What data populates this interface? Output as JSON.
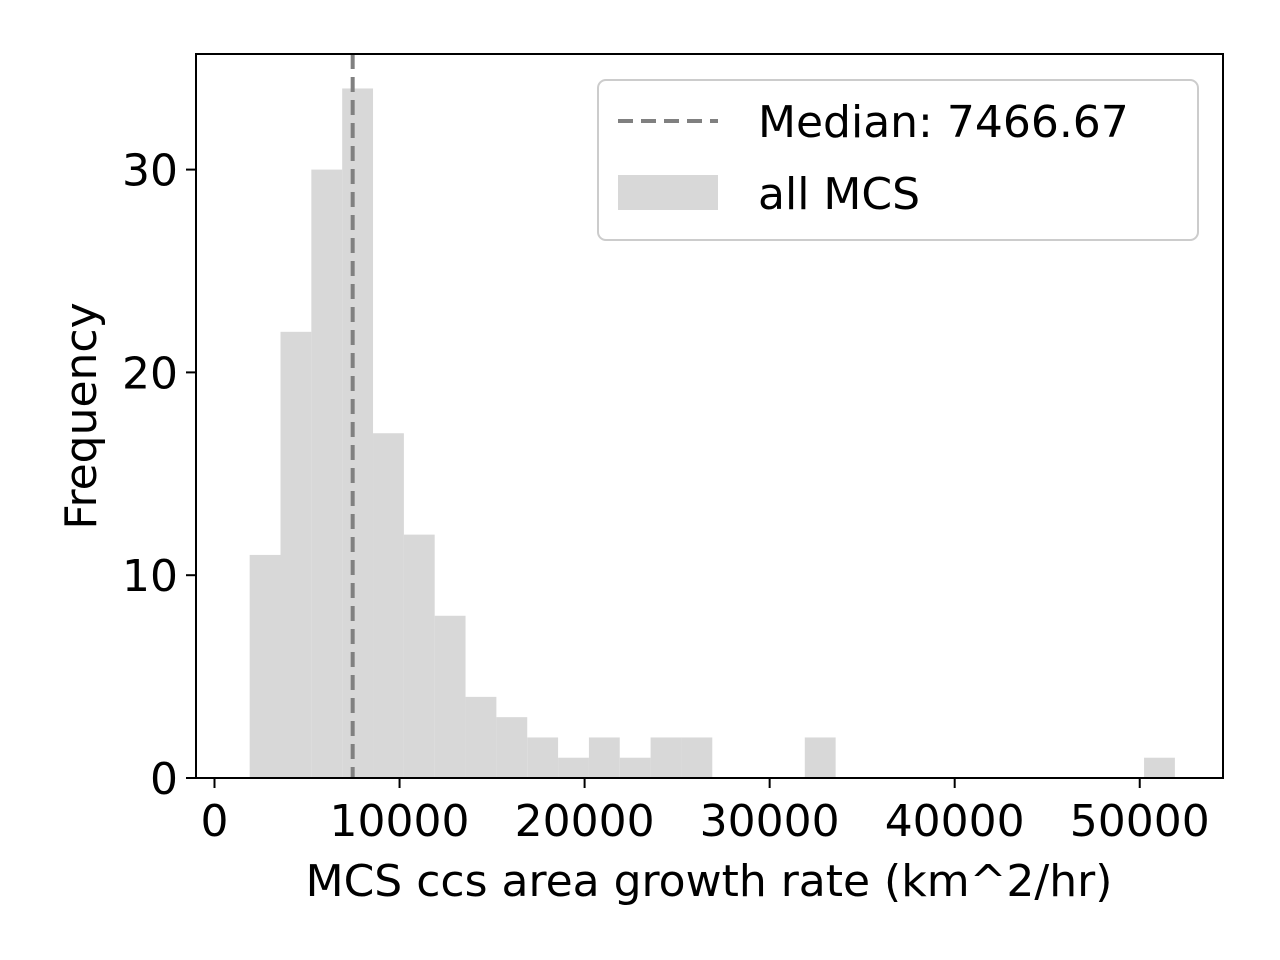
{
  "chart_data": {
    "type": "histogram",
    "xlabel": "MCS ccs area growth rate (km^2/hr)",
    "ylabel": "Frequency",
    "xlim": [
      -1000,
      54500
    ],
    "ylim": [
      0,
      35.7
    ],
    "xticks": [
      0,
      10000,
      20000,
      30000,
      40000,
      50000
    ],
    "xtick_labels": [
      "0",
      "10000",
      "20000",
      "30000",
      "40000",
      "50000"
    ],
    "yticks": [
      0,
      10,
      20,
      30
    ],
    "ytick_labels": [
      "0",
      "10",
      "20",
      "30"
    ],
    "grid": false,
    "legend_position": "top-right",
    "series": [
      {
        "name": "all MCS",
        "color": "#d8d8d8",
        "bin_width": 1666.7,
        "bins_start": [
          1900,
          3567,
          5233,
          6900,
          8567,
          10233,
          11900,
          13567,
          15233,
          16900,
          18567,
          20233,
          21900,
          23567,
          25233,
          26900,
          28567,
          30233,
          31900,
          33567,
          35233,
          36900,
          38567,
          40233,
          41900,
          43567,
          45233,
          46900,
          48567,
          50233
        ],
        "counts": [
          11,
          22,
          30,
          34,
          17,
          12,
          8,
          4,
          3,
          2,
          1,
          2,
          1,
          2,
          2,
          0,
          0,
          0,
          2,
          0,
          0,
          0,
          0,
          0,
          0,
          0,
          0,
          0,
          0,
          1
        ]
      }
    ],
    "reference_lines": [
      {
        "name": "Median: 7466.67",
        "orientation": "vertical",
        "x": 7466.67,
        "style": "dashed",
        "color": "#808080"
      }
    ]
  }
}
